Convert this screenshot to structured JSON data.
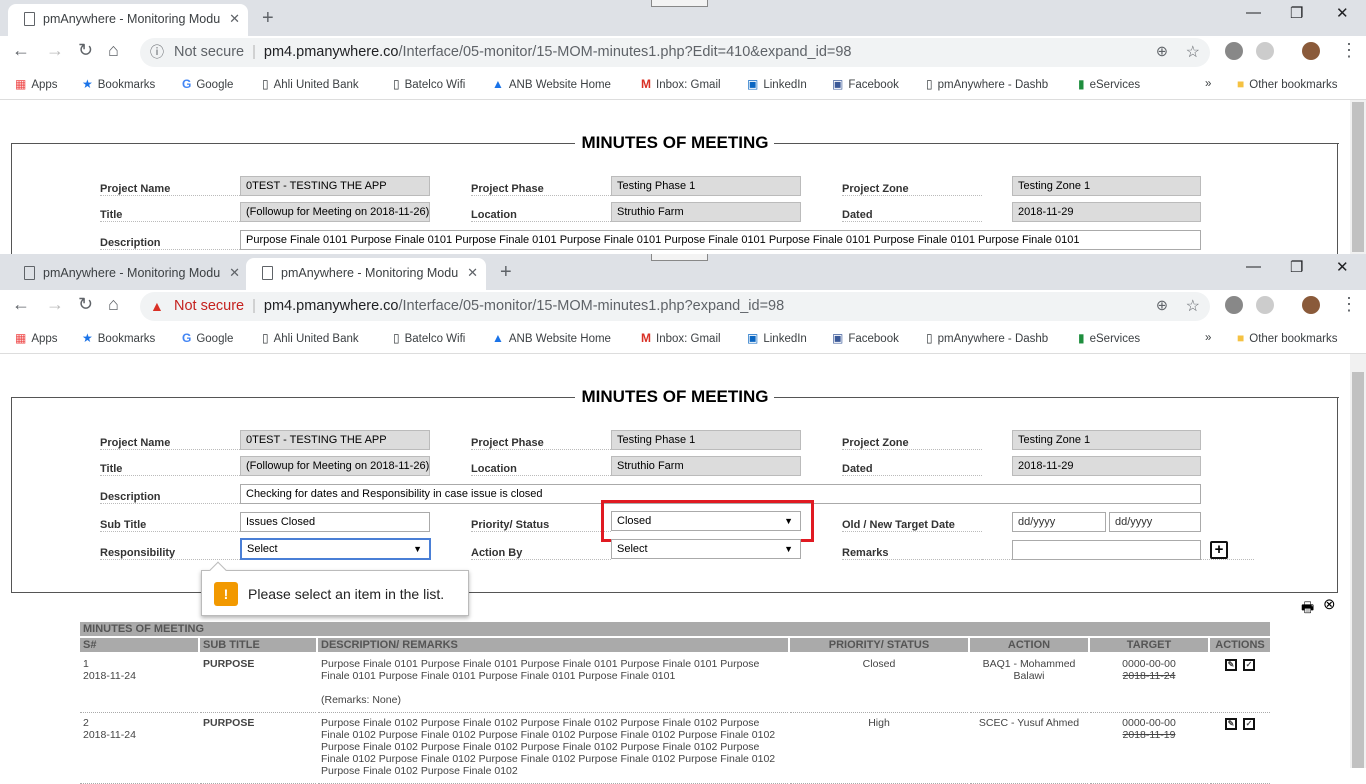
{
  "windows": [
    {
      "tabs": [
        {
          "title": "pmAnywhere - Monitoring Modu",
          "active": true
        }
      ],
      "security": "Not secure",
      "url_host": "pm4.pmanywhere.co",
      "url_path": "/Interface/05-monitor/15-MOM-minutes1.php?Edit=410&expand_id=98",
      "form": {
        "title": "MINUTES OF MEETING",
        "project_name": "0TEST - TESTING THE APP",
        "project_phase": "Testing Phase 1",
        "project_zone": "Testing Zone 1",
        "title_value": "(Followup for Meeting on 2018-11-26)",
        "location": "Struthio Farm",
        "dated": "2018-11-29",
        "description": "Purpose Finale 0101 Purpose Finale 0101 Purpose Finale 0101 Purpose Finale 0101 Purpose Finale 0101 Purpose Finale 0101 Purpose Finale 0101 Purpose Finale 0101"
      }
    },
    {
      "tabs": [
        {
          "title": "pmAnywhere - Monitoring Modu",
          "active": false
        },
        {
          "title": "pmAnywhere - Monitoring Modu",
          "active": true
        }
      ],
      "security": "Not secure",
      "url_host": "pm4.pmanywhere.co",
      "url_path": "/Interface/05-monitor/15-MOM-minutes1.php?expand_id=98",
      "form": {
        "title": "MINUTES OF MEETING",
        "project_name": "0TEST - TESTING THE APP",
        "project_phase": "Testing Phase 1",
        "project_zone": "Testing Zone 1",
        "title_value": "(Followup for Meeting on 2018-11-26)",
        "location": "Struthio Farm",
        "dated": "2018-11-29",
        "description": "Checking for dates and Responsibility in case issue is closed",
        "sub_title": "Issues Closed",
        "priority_status": "Closed",
        "old_target_placeholder": "dd/yyyy",
        "new_target_placeholder": "dd/yyyy",
        "responsibility": "Select",
        "action_by": "Select",
        "remarks": ""
      },
      "validation_tooltip": "Please select an item in the list.",
      "table": {
        "caption": "MINUTES OF MEETING",
        "headers": [
          "S#",
          "SUB TITLE",
          "DESCRIPTION/ REMARKS",
          "PRIORITY/ STATUS",
          "ACTION",
          "TARGET",
          "ACTIONS"
        ],
        "rows": [
          {
            "num": "1",
            "date": "2018-11-24",
            "sub_title": "PURPOSE",
            "description": "Purpose Finale 0101 Purpose Finale 0101 Purpose Finale 0101 Purpose Finale 0101 Purpose Finale 0101 Purpose Finale 0101 Purpose Finale 0101 Purpose Finale 0101",
            "remarks": "(Remarks: None)",
            "status": "Closed",
            "action": "BAQ1 - Mohammed Balawi",
            "target_new": "0000-00-00",
            "target_old": "2018-11-24"
          },
          {
            "num": "2",
            "date": "2018-11-24",
            "sub_title": "PURPOSE",
            "description": "Purpose Finale 0102 Purpose Finale 0102 Purpose Finale 0102 Purpose Finale 0102 Purpose Finale 0102 Purpose Finale 0102 Purpose Finale 0102 Purpose Finale 0102 Purpose Finale 0102 Purpose Finale 0102 Purpose Finale 0102 Purpose Finale 0102 Purpose Finale 0102 Purpose Finale 0102 Purpose Finale 0102 Purpose Finale 0102 Purpose Finale 0102 Purpose Finale 0102 Purpose Finale 0102 Purpose Finale 0102",
            "remarks": "",
            "status": "High",
            "action": "SCEC - Yusuf Ahmed",
            "target_new": "0000-00-00",
            "target_old": "2018-11-19"
          }
        ]
      }
    }
  ],
  "form_labels": {
    "project_name": "Project Name",
    "project_phase": "Project Phase",
    "project_zone": "Project Zone",
    "title": "Title",
    "location": "Location",
    "dated": "Dated",
    "description": "Description",
    "sub_title": "Sub Title",
    "priority_status": "Priority/ Status",
    "target_date": "Old / New Target Date",
    "responsibility": "Responsibility",
    "action_by": "Action By",
    "remarks": "Remarks"
  },
  "bookmarks": [
    "Apps",
    "Bookmarks",
    "Google",
    "Ahli United Bank",
    "Batelco Wifi",
    "ANB Website  Home",
    "Inbox: Gmail",
    "LinkedIn",
    "Facebook",
    "pmAnywhere - Dashb",
    "eServices",
    "Other bookmarks"
  ],
  "icons": {
    "print": "print-icon",
    "close": "close-circle-icon",
    "edit": "edit-icon",
    "approve": "check-box-icon"
  },
  "colors": {
    "highlight": "#e01a22",
    "header_bg": "#aaaaaa",
    "warning": "#f29900"
  }
}
